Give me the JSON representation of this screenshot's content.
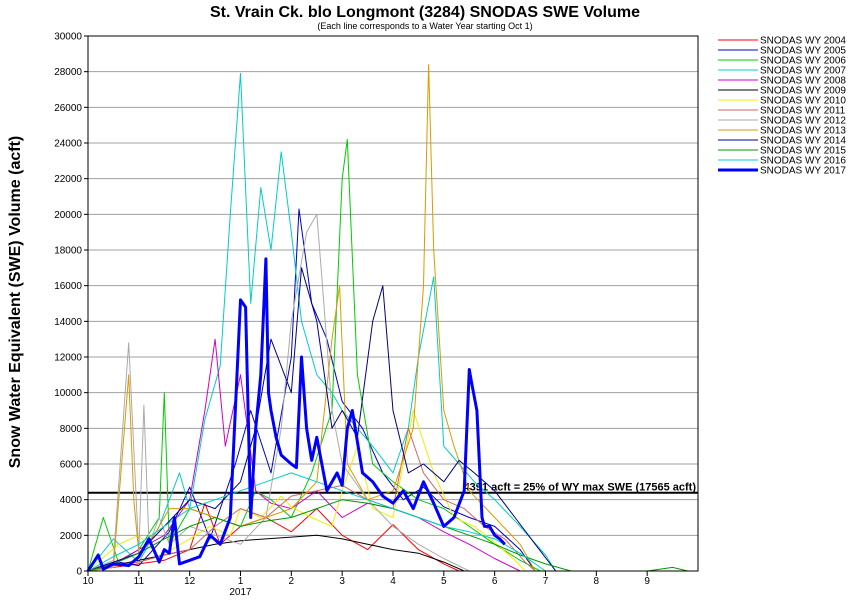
{
  "chart_data": {
    "type": "line",
    "title": "St. Vrain Ck. blo Longmont (3284) SNODAS SWE Volume",
    "subtitle": "(Each line corresponds to a Water Year starting Oct 1)",
    "ylabel": "Snow Water Equivalent (SWE) Volume (acft)",
    "xlabel": "",
    "ylim": [
      0,
      30000
    ],
    "xlim": [
      0,
      12
    ],
    "grid": true,
    "legend_position": "right",
    "y_ticks": [
      "0",
      "2000",
      "4000",
      "6000",
      "8000",
      "10000",
      "12000",
      "14000",
      "16000",
      "18000",
      "20000",
      "22000",
      "24000",
      "26000",
      "28000",
      "30000"
    ],
    "x_ticks": [
      {
        "pos": 0,
        "label": "10"
      },
      {
        "pos": 1,
        "label": "11"
      },
      {
        "pos": 2,
        "label": "12"
      },
      {
        "pos": 3,
        "label": "1"
      },
      {
        "pos": 4,
        "label": "2"
      },
      {
        "pos": 5,
        "label": "3"
      },
      {
        "pos": 6,
        "label": "4"
      },
      {
        "pos": 7,
        "label": "5"
      },
      {
        "pos": 8,
        "label": "6"
      },
      {
        "pos": 9,
        "label": "7"
      },
      {
        "pos": 10,
        "label": "8"
      },
      {
        "pos": 11,
        "label": "9"
      }
    ],
    "year_label": {
      "pos": 3,
      "label": "2017"
    },
    "reference_line": {
      "value": 4391,
      "label": "4391 acft = 25% of WY max SWE (17565 acft)"
    },
    "series": [
      {
        "name": "SNODAS WY 2004",
        "color": "#ff0000",
        "width": 1,
        "x": [
          0,
          0.5,
          1,
          1.5,
          2,
          2.3,
          2.6,
          3,
          3.5,
          4,
          4.5,
          5,
          5.5,
          6,
          6.5,
          7,
          7.3
        ],
        "y": [
          0,
          200,
          400,
          600,
          1200,
          3800,
          1500,
          2500,
          3000,
          2200,
          3500,
          2000,
          1200,
          2600,
          1200,
          400,
          0
        ]
      },
      {
        "name": "SNODAS WY 2005",
        "color": "#0000cc",
        "width": 1,
        "x": [
          0,
          0.6,
          1,
          1.6,
          2,
          2.4,
          2.9,
          3.2,
          3.6,
          4,
          4.15,
          4.4,
          4.7,
          5,
          5.4,
          5.8,
          6.2,
          6.6,
          7,
          7.5,
          8,
          8.5,
          8.8
        ],
        "y": [
          0,
          500,
          300,
          2200,
          4700,
          1800,
          6000,
          9000,
          5500,
          12000,
          20300,
          15000,
          13000,
          9500,
          8000,
          5500,
          4000,
          4700,
          3600,
          3000,
          2500,
          1200,
          0
        ]
      },
      {
        "name": "SNODAS WY 2006",
        "color": "#00cc00",
        "width": 1,
        "x": [
          0,
          0.3,
          0.6,
          1,
          1.4,
          1.5,
          1.6,
          2,
          2.5,
          3,
          3.3,
          3.6,
          4,
          4.4,
          4.8,
          5,
          5.1,
          5.3,
          5.6,
          6,
          6.5,
          7,
          7.5,
          8,
          8.5,
          8.9
        ],
        "y": [
          0,
          3000,
          500,
          1200,
          3000,
          10000,
          1500,
          3500,
          3000,
          2500,
          4500,
          4000,
          3000,
          5500,
          9000,
          22000,
          24200,
          11000,
          6000,
          5000,
          4000,
          3500,
          2500,
          1500,
          600,
          0
        ]
      },
      {
        "name": "SNODAS WY 2007",
        "color": "#00cccc",
        "width": 1,
        "x": [
          0,
          0.5,
          1,
          1.4,
          1.8,
          2,
          2.3,
          2.6,
          2.8,
          3,
          3.2,
          3.4,
          3.6,
          3.8,
          4,
          4.2,
          4.5,
          4.8,
          5,
          5.3,
          5.6,
          6,
          6.3,
          6.5,
          6.8,
          7,
          7.3,
          7.6,
          8,
          8.5,
          9,
          9.2
        ],
        "y": [
          0,
          1800,
          500,
          2500,
          5500,
          3500,
          8500,
          11500,
          20000,
          27900,
          15000,
          21500,
          18000,
          23500,
          19000,
          14000,
          11000,
          10000,
          9000,
          8000,
          7000,
          5500,
          8000,
          12000,
          16500,
          7000,
          6000,
          5000,
          4000,
          2500,
          900,
          0
        ]
      },
      {
        "name": "SNODAS WY 2008",
        "color": "#cc00cc",
        "width": 1,
        "x": [
          0,
          0.5,
          1,
          1.5,
          2,
          2.3,
          2.5,
          2.7,
          3,
          3.3,
          3.6,
          4,
          4.5,
          5,
          5.5,
          6,
          6.5,
          7,
          7.5,
          8,
          8.5
        ],
        "y": [
          0,
          400,
          1200,
          2000,
          4000,
          9000,
          13000,
          7000,
          11000,
          4500,
          3800,
          3500,
          4500,
          3000,
          3800,
          3500,
          3000,
          2200,
          1500,
          700,
          0
        ]
      },
      {
        "name": "SNODAS WY 2009",
        "color": "#000000",
        "width": 1,
        "x": [
          0,
          0.5,
          1,
          1.5,
          2,
          2.5,
          3,
          3.5,
          4,
          4.5,
          5,
          5.5,
          6,
          6.5,
          7,
          7.4
        ],
        "y": [
          0,
          300,
          600,
          900,
          1200,
          1500,
          1700,
          1800,
          1900,
          2000,
          1800,
          1500,
          1200,
          1000,
          500,
          0
        ]
      },
      {
        "name": "SNODAS WY 2010",
        "color": "#eeee00",
        "width": 1,
        "x": [
          0,
          0.6,
          1,
          1.4,
          2,
          2.4,
          2.8,
          3,
          3.4,
          3.8,
          4,
          4.4,
          4.8,
          5,
          5.3,
          5.6,
          6,
          6.4,
          6.8,
          7.2,
          7.6,
          8,
          8.4,
          8.6
        ],
        "y": [
          0,
          1500,
          2000,
          800,
          1800,
          2500,
          2000,
          3500,
          3000,
          4200,
          3600,
          3000,
          2500,
          4500,
          7000,
          3500,
          3000,
          9000,
          5500,
          3000,
          2500,
          1600,
          600,
          0
        ]
      },
      {
        "name": "SNODAS WY 2011",
        "color": "#cc6666",
        "width": 1,
        "x": [
          0,
          0.5,
          1,
          1.5,
          2,
          2.5,
          3,
          3.5,
          4,
          4.5,
          5,
          5.5,
          6,
          6.3,
          6.6,
          7,
          7.4,
          7.8,
          8.2,
          8.6,
          8.8
        ],
        "y": [
          0,
          300,
          500,
          900,
          1200,
          2500,
          3500,
          3000,
          4200,
          4500,
          4800,
          4000,
          3500,
          8000,
          5500,
          4000,
          3500,
          2500,
          1800,
          500,
          0
        ]
      },
      {
        "name": "SNODAS WY 2012",
        "color": "#aaaaaa",
        "width": 1,
        "x": [
          0,
          0.5,
          0.8,
          1,
          1.1,
          1.2,
          1.4,
          1.6,
          2,
          2.5,
          3,
          3.5,
          3.8,
          4,
          4.3,
          4.5,
          4.6,
          4.8,
          5,
          5.5,
          6,
          6.5,
          7,
          7.5
        ],
        "y": [
          0,
          600,
          12800,
          1000,
          9300,
          1500,
          3000,
          1500,
          2500,
          2000,
          1500,
          3000,
          8000,
          14000,
          19000,
          20000,
          16500,
          9000,
          6000,
          4000,
          2500,
          1500,
          700,
          0
        ]
      },
      {
        "name": "SNODAS WY 2013",
        "color": "#dd9900",
        "width": 1,
        "x": [
          0,
          0.5,
          0.8,
          0.9,
          1,
          1.3,
          1.6,
          2,
          2.5,
          3,
          3.5,
          4,
          4.5,
          4.8,
          4.95,
          5.1,
          5.5,
          6,
          6.4,
          6.6,
          6.7,
          6.8,
          7,
          7.2,
          7.5,
          8,
          8.5,
          8.8
        ],
        "y": [
          0,
          200,
          11000,
          4000,
          1000,
          2000,
          3500,
          3500,
          3000,
          2500,
          3000,
          3500,
          5000,
          13000,
          16000,
          6000,
          4000,
          4500,
          8000,
          16000,
          28400,
          18000,
          9000,
          7000,
          4500,
          3000,
          1500,
          0
        ]
      },
      {
        "name": "SNODAS WY 2014",
        "color": "#000088",
        "width": 1,
        "x": [
          0,
          0.5,
          1,
          1.5,
          2,
          2.5,
          3,
          3.3,
          3.6,
          4,
          4.2,
          4.5,
          4.8,
          5,
          5.3,
          5.6,
          5.8,
          6,
          6.3,
          6.6,
          7,
          7.3,
          7.6,
          8,
          8.4,
          8.8,
          9.2
        ],
        "y": [
          0,
          500,
          1000,
          2500,
          4000,
          3500,
          5000,
          8000,
          13000,
          10000,
          17000,
          14000,
          8000,
          9000,
          7500,
          14000,
          16000,
          9000,
          5500,
          6000,
          5000,
          6200,
          5500,
          4500,
          3000,
          1500,
          0
        ]
      },
      {
        "name": "SNODAS WY 2015",
        "color": "#009900",
        "width": 1,
        "x": [
          0,
          0.5,
          1,
          1.5,
          2,
          2.5,
          3,
          3.5,
          4,
          4.5,
          5,
          5.5,
          6,
          6.5,
          7,
          7.5,
          8,
          8.5,
          9,
          9.5,
          10,
          10.5,
          11,
          11.5,
          11.8
        ],
        "y": [
          0,
          400,
          1000,
          1800,
          2500,
          3000,
          2500,
          2800,
          3000,
          3500,
          4000,
          3800,
          3500,
          3000,
          2500,
          2000,
          1500,
          900,
          400,
          0,
          0,
          0,
          0,
          200,
          0
        ]
      },
      {
        "name": "SNODAS WY 2016",
        "color": "#00cccc",
        "width": 1,
        "x": [
          0,
          0.5,
          1,
          1.5,
          2,
          2.5,
          3,
          3.5,
          4,
          4.5,
          5,
          5.5,
          6,
          6.5,
          7,
          7.5,
          8,
          8.5,
          9
        ],
        "y": [
          0,
          800,
          1500,
          2500,
          3500,
          4000,
          4500,
          5000,
          5500,
          5000,
          4500,
          4000,
          3500,
          3000,
          2500,
          2200,
          1800,
          1000,
          0
        ]
      },
      {
        "name": "SNODAS WY 2017",
        "color": "#0000ff",
        "width": 3,
        "x": [
          0,
          0.2,
          0.3,
          0.5,
          0.8,
          1,
          1.2,
          1.4,
          1.5,
          1.6,
          1.7,
          1.8,
          2,
          2.2,
          2.4,
          2.6,
          2.8,
          3,
          3.1,
          3.2,
          3.3,
          3.4,
          3.5,
          3.55,
          3.6,
          3.7,
          3.8,
          4,
          4.1,
          4.2,
          4.3,
          4.4,
          4.5,
          4.7,
          4.9,
          5,
          5.1,
          5.2,
          5.4,
          5.6,
          5.8,
          6,
          6.2,
          6.4,
          6.6,
          6.8,
          7,
          7.2,
          7.4,
          7.5,
          7.55,
          7.65,
          7.75,
          7.8,
          7.9,
          8,
          8.1,
          8.2
        ],
        "y": [
          0,
          900,
          100,
          400,
          300,
          800,
          1800,
          500,
          1200,
          1000,
          3000,
          400,
          600,
          800,
          2000,
          1500,
          3000,
          15200,
          14800,
          3000,
          8000,
          11000,
          17500,
          10000,
          9000,
          7500,
          6500,
          6000,
          5800,
          12000,
          8000,
          6200,
          7500,
          4500,
          5500,
          4800,
          8000,
          9000,
          5500,
          5000,
          4200,
          3800,
          4500,
          3500,
          5000,
          3800,
          2500,
          3000,
          4500,
          11300,
          10500,
          9000,
          3000,
          2500,
          2500,
          2000,
          1800,
          1500
        ]
      }
    ]
  }
}
